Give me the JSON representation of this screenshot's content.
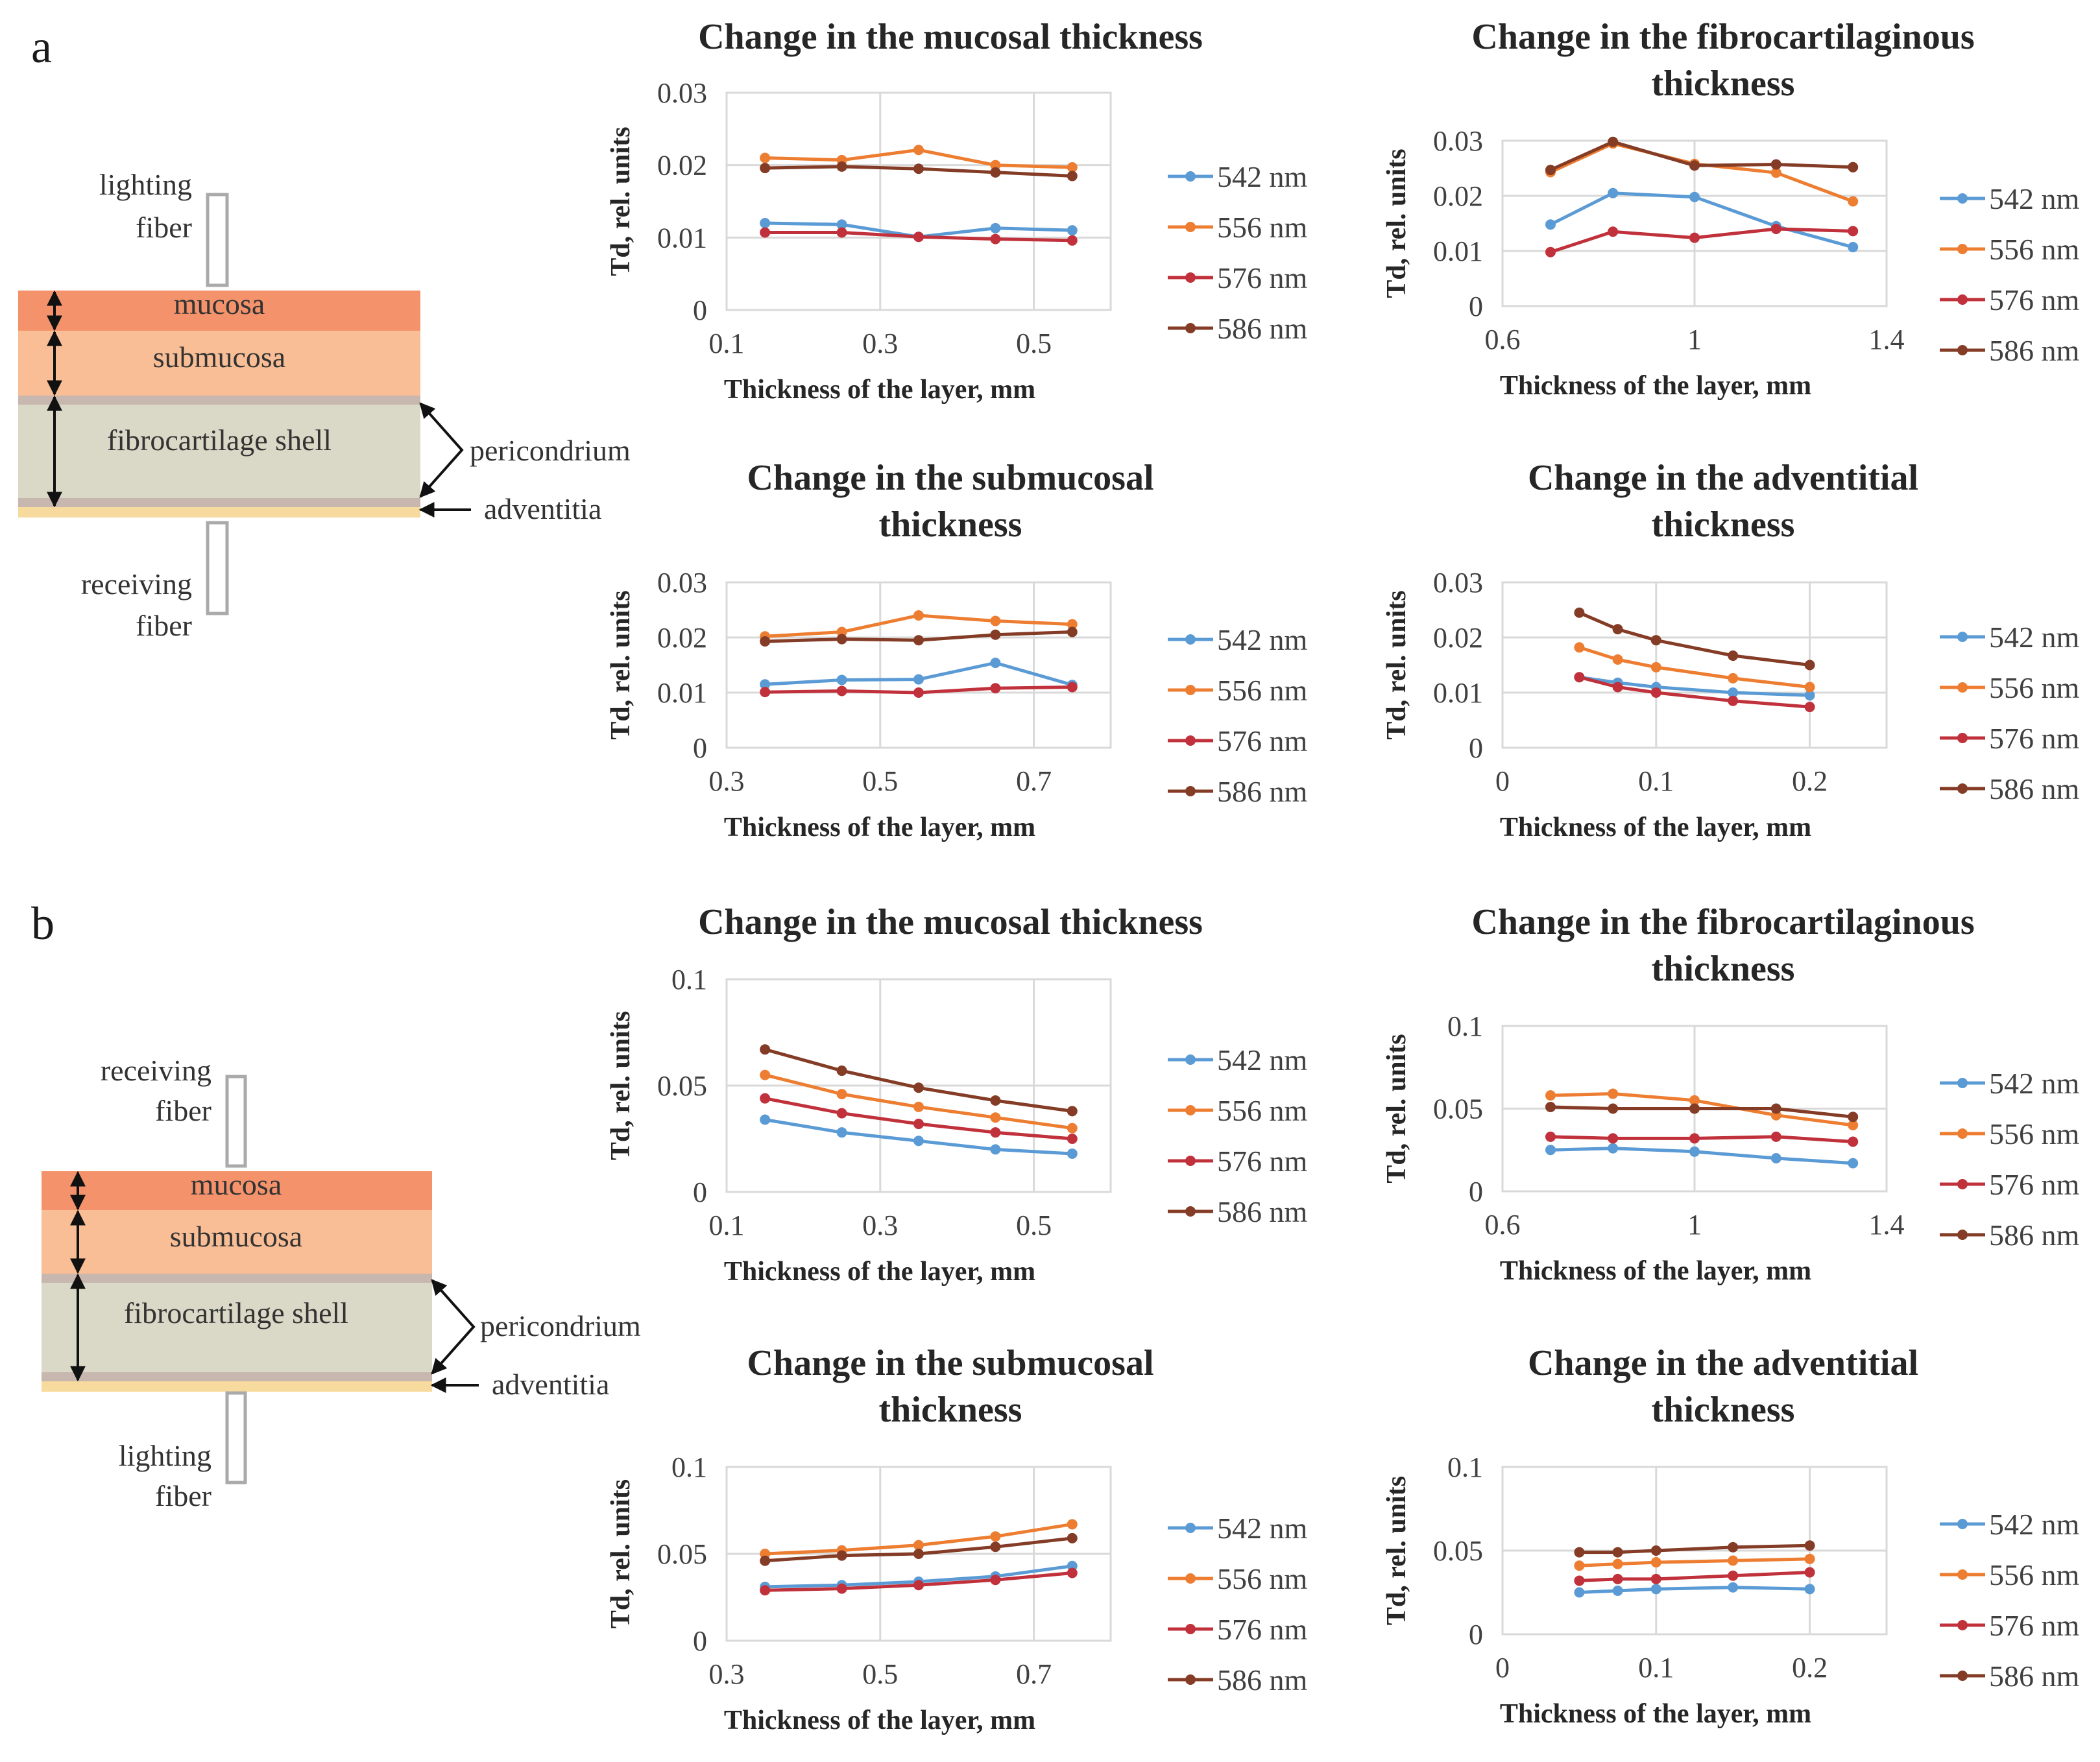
{
  "panel_labels": {
    "a": "a",
    "b": "b"
  },
  "diagrams": {
    "a": {
      "top_fiber": "lighting\nfiber",
      "bottom_fiber": "receiving\nfiber",
      "layers": {
        "mucosa": "mucosa",
        "submucosa": "submucosa",
        "shell": "fibrocartilage  shell"
      },
      "pericondrium": "pericondrium",
      "adventitia": "adventitia"
    },
    "b": {
      "top_fiber": "receiving\nfiber",
      "bottom_fiber": "lighting\nfiber",
      "layers": {
        "mucosa": "mucosa",
        "submucosa": "submucosa",
        "shell": "fibrocartilage  shell"
      },
      "pericondrium": "pericondrium",
      "adventitia": "adventitia"
    }
  },
  "colors": {
    "542 nm": "#5B9BD5",
    "556 nm": "#ED7D31",
    "576 nm": "#C0313B",
    "586 nm": "#843C26",
    "mucosa": "#F4936B",
    "submucosa": "#F9BE95",
    "shell": "#DAD8C6",
    "peri": "#C8B7AE",
    "adventitia": "#F7DA9E"
  },
  "chart_data": [
    {
      "id": "a-mucosal",
      "type": "line",
      "title": "Change in the mucosal thickness",
      "xlabel": "Thickness of the layer, mm",
      "ylabel": "Td, rel. units",
      "xlim": [
        0.1,
        0.6
      ],
      "xticks": [
        "0.1",
        "0.3",
        "0.5"
      ],
      "xtick_values": [
        0.1,
        0.3,
        0.5
      ],
      "ylim": [
        0,
        0.03
      ],
      "yticks": [
        "0",
        "0.01",
        "0.02",
        "0.03"
      ],
      "ytick_values": [
        0,
        0.01,
        0.02,
        0.03
      ],
      "x": [
        0.15,
        0.25,
        0.35,
        0.45,
        0.55
      ],
      "series": [
        {
          "name": "542 nm",
          "values": [
            0.012,
            0.0118,
            0.0101,
            0.0113,
            0.011
          ]
        },
        {
          "name": "556 nm",
          "values": [
            0.021,
            0.0207,
            0.0221,
            0.02,
            0.0197
          ]
        },
        {
          "name": "576 nm",
          "values": [
            0.0107,
            0.0107,
            0.0101,
            0.0098,
            0.0096
          ]
        },
        {
          "name": "586 nm",
          "values": [
            0.0196,
            0.0198,
            0.0195,
            0.019,
            0.0185
          ]
        }
      ]
    },
    {
      "id": "a-fibro",
      "type": "line",
      "title": "Change in the fibrocartilaginous\nthickness",
      "xlabel": "Thickness of the layer, mm",
      "ylabel": "Td, rel. units",
      "xlim": [
        0.6,
        1.4
      ],
      "xticks": [
        "0.6",
        "1",
        "1.4"
      ],
      "xtick_values": [
        0.6,
        1.0,
        1.4
      ],
      "ylim": [
        0,
        0.03
      ],
      "yticks": [
        "0",
        "0.01",
        "0.02",
        "0.03"
      ],
      "ytick_values": [
        0,
        0.01,
        0.02,
        0.03
      ],
      "x": [
        0.7,
        0.83,
        1.0,
        1.17,
        1.33
      ],
      "series": [
        {
          "name": "542 nm",
          "values": [
            0.0148,
            0.0205,
            0.0198,
            0.0145,
            0.0107
          ]
        },
        {
          "name": "556 nm",
          "values": [
            0.0243,
            0.0295,
            0.0258,
            0.0242,
            0.019
          ]
        },
        {
          "name": "576 nm",
          "values": [
            0.0098,
            0.0135,
            0.0124,
            0.014,
            0.0136
          ]
        },
        {
          "name": "586 nm",
          "values": [
            0.0247,
            0.0298,
            0.0255,
            0.0257,
            0.0252
          ]
        }
      ]
    },
    {
      "id": "a-submucosal",
      "type": "line",
      "title": "Change in the submucosal\nthickness",
      "xlabel": "Thickness of the layer, mm",
      "ylabel": "Td, rel. units",
      "xlim": [
        0.3,
        0.8
      ],
      "xticks": [
        "0.3",
        "0.5",
        "0.7"
      ],
      "xtick_values": [
        0.3,
        0.5,
        0.7
      ],
      "ylim": [
        0,
        0.03
      ],
      "yticks": [
        "0",
        "0.01",
        "0.02",
        "0.03"
      ],
      "ytick_values": [
        0,
        0.01,
        0.02,
        0.03
      ],
      "x": [
        0.35,
        0.45,
        0.55,
        0.65,
        0.75
      ],
      "series": [
        {
          "name": "542 nm",
          "values": [
            0.0115,
            0.0123,
            0.0124,
            0.0154,
            0.0114
          ]
        },
        {
          "name": "556 nm",
          "values": [
            0.0202,
            0.021,
            0.024,
            0.023,
            0.0224
          ]
        },
        {
          "name": "576 nm",
          "values": [
            0.0101,
            0.0103,
            0.01,
            0.0108,
            0.011
          ]
        },
        {
          "name": "586 nm",
          "values": [
            0.0193,
            0.0197,
            0.0195,
            0.0205,
            0.021
          ]
        }
      ]
    },
    {
      "id": "a-adventitial",
      "type": "line",
      "title": "Change in the adventitial\nthickness",
      "xlabel": "Thickness of the layer, mm",
      "ylabel": "Td, rel. units",
      "xlim": [
        0,
        0.25
      ],
      "xticks": [
        "0",
        "0.1",
        "0.2"
      ],
      "xtick_values": [
        0,
        0.1,
        0.2
      ],
      "ylim": [
        0,
        0.03
      ],
      "yticks": [
        "0",
        "0.01",
        "0.02",
        "0.03"
      ],
      "ytick_values": [
        0,
        0.01,
        0.02,
        0.03
      ],
      "x": [
        0.05,
        0.075,
        0.1,
        0.15,
        0.2
      ],
      "series": [
        {
          "name": "542 nm",
          "values": [
            0.0128,
            0.0118,
            0.011,
            0.01,
            0.0095
          ]
        },
        {
          "name": "556 nm",
          "values": [
            0.0182,
            0.016,
            0.0146,
            0.0126,
            0.011
          ]
        },
        {
          "name": "576 nm",
          "values": [
            0.0128,
            0.011,
            0.01,
            0.0085,
            0.0074
          ]
        },
        {
          "name": "586 nm",
          "values": [
            0.0245,
            0.0215,
            0.0195,
            0.0167,
            0.015
          ]
        }
      ]
    },
    {
      "id": "b-mucosal",
      "type": "line",
      "title": "Change in the mucosal thickness",
      "xlabel": "Thickness of the layer, mm",
      "ylabel": "Td, rel. units",
      "xlim": [
        0.1,
        0.6
      ],
      "xticks": [
        "0.1",
        "0.3",
        "0.5"
      ],
      "xtick_values": [
        0.1,
        0.3,
        0.5
      ],
      "ylim": [
        0,
        0.1
      ],
      "yticks": [
        "0",
        "0.05",
        "0.1"
      ],
      "ytick_values": [
        0,
        0.05,
        0.1
      ],
      "x": [
        0.15,
        0.25,
        0.35,
        0.45,
        0.55
      ],
      "series": [
        {
          "name": "542 nm",
          "values": [
            0.034,
            0.028,
            0.024,
            0.02,
            0.018
          ]
        },
        {
          "name": "556 nm",
          "values": [
            0.055,
            0.046,
            0.04,
            0.035,
            0.03
          ]
        },
        {
          "name": "576 nm",
          "values": [
            0.044,
            0.037,
            0.032,
            0.028,
            0.025
          ]
        },
        {
          "name": "586 nm",
          "values": [
            0.067,
            0.057,
            0.049,
            0.043,
            0.038
          ]
        }
      ]
    },
    {
      "id": "b-fibro",
      "type": "line",
      "title": "Change in the fibrocartilaginous\nthickness",
      "xlabel": "Thickness of the layer, mm",
      "ylabel": "Td, rel. units",
      "xlim": [
        0.6,
        1.4
      ],
      "xticks": [
        "0.6",
        "1",
        "1.4"
      ],
      "xtick_values": [
        0.6,
        1.0,
        1.4
      ],
      "ylim": [
        0,
        0.1
      ],
      "yticks": [
        "0",
        "0.05",
        "0.1"
      ],
      "ytick_values": [
        0,
        0.05,
        0.1
      ],
      "x": [
        0.7,
        0.83,
        1.0,
        1.17,
        1.33
      ],
      "series": [
        {
          "name": "542 nm",
          "values": [
            0.025,
            0.026,
            0.024,
            0.02,
            0.017
          ]
        },
        {
          "name": "556 nm",
          "values": [
            0.058,
            0.059,
            0.055,
            0.046,
            0.04
          ]
        },
        {
          "name": "576 nm",
          "values": [
            0.033,
            0.032,
            0.032,
            0.033,
            0.03
          ]
        },
        {
          "name": "586 nm",
          "values": [
            0.051,
            0.05,
            0.05,
            0.05,
            0.045
          ]
        }
      ]
    },
    {
      "id": "b-submucosal",
      "type": "line",
      "title": "Change in the submucosal\nthickness",
      "xlabel": "Thickness of the layer, mm",
      "ylabel": "Td, rel. units",
      "xlim": [
        0.3,
        0.8
      ],
      "xticks": [
        "0.3",
        "0.5",
        "0.7"
      ],
      "xtick_values": [
        0.3,
        0.5,
        0.7
      ],
      "ylim": [
        0,
        0.1
      ],
      "yticks": [
        "0",
        "0.05",
        "0.1"
      ],
      "ytick_values": [
        0,
        0.05,
        0.1
      ],
      "x": [
        0.35,
        0.45,
        0.55,
        0.65,
        0.75
      ],
      "series": [
        {
          "name": "542 nm",
          "values": [
            0.031,
            0.032,
            0.034,
            0.037,
            0.043
          ]
        },
        {
          "name": "556 nm",
          "values": [
            0.05,
            0.052,
            0.055,
            0.06,
            0.067
          ]
        },
        {
          "name": "576 nm",
          "values": [
            0.029,
            0.03,
            0.032,
            0.035,
            0.039
          ]
        },
        {
          "name": "586 nm",
          "values": [
            0.046,
            0.049,
            0.05,
            0.054,
            0.059
          ]
        }
      ]
    },
    {
      "id": "b-adventitial",
      "type": "line",
      "title": "Change in the adventitial\nthickness",
      "xlabel": "Thickness of the layer, mm",
      "ylabel": "Td, rel. units",
      "xlim": [
        0,
        0.25
      ],
      "xticks": [
        "0",
        "0.1",
        "0.2"
      ],
      "xtick_values": [
        0,
        0.1,
        0.2
      ],
      "ylim": [
        0,
        0.1
      ],
      "yticks": [
        "0",
        "0.05",
        "0.1"
      ],
      "ytick_values": [
        0,
        0.05,
        0.1
      ],
      "x": [
        0.05,
        0.075,
        0.1,
        0.15,
        0.2
      ],
      "series": [
        {
          "name": "542 nm",
          "values": [
            0.025,
            0.026,
            0.027,
            0.028,
            0.027
          ]
        },
        {
          "name": "556 nm",
          "values": [
            0.041,
            0.042,
            0.043,
            0.044,
            0.045
          ]
        },
        {
          "name": "576 nm",
          "values": [
            0.032,
            0.033,
            0.033,
            0.035,
            0.037
          ]
        },
        {
          "name": "586 nm",
          "values": [
            0.049,
            0.049,
            0.05,
            0.052,
            0.053
          ]
        }
      ]
    }
  ]
}
